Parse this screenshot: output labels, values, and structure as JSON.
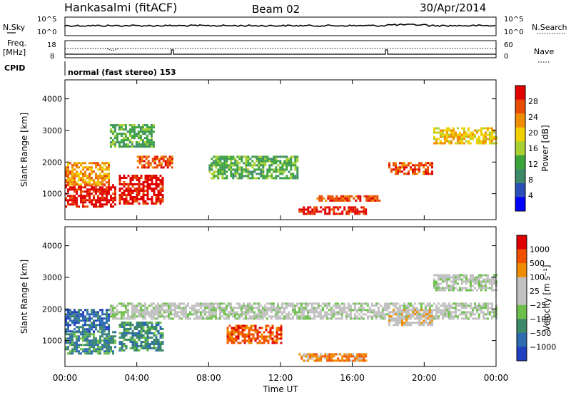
{
  "header": {
    "station": "Hankasalmi (fitACF)",
    "beam": "Beam 02",
    "date": "30/Apr/2014"
  },
  "strip_panels": {
    "nsky": {
      "left_label": "N.Sky",
      "right_label": "N.Search",
      "left_ticks": [
        "10^5",
        "10^0"
      ],
      "right_ticks": [
        "10^5",
        "10^0"
      ]
    },
    "freq": {
      "left_label_line1": "Freq.",
      "left_label_line2": "[MHz]",
      "right_label": "Nave",
      "left_ticks": [
        "18",
        "8"
      ],
      "right_ticks": [
        "60",
        "0"
      ]
    },
    "cpid": {
      "label": "CPID",
      "program": "normal (fast stereo) 153"
    }
  },
  "colors": {
    "power_scale": [
      "#0000ff",
      "#2a4fb8",
      "#3d8a6a",
      "#3aa43a",
      "#a8d030",
      "#f0d000",
      "#f08c00",
      "#e84c00",
      "#e00000"
    ],
    "velocity_scale": [
      "#2040c0",
      "#2f6bb0",
      "#3d8a6a",
      "#6cc04a",
      "#c0c0c0",
      "#c0c0c0",
      "#f08c00",
      "#f05000",
      "#e00000"
    ]
  },
  "chart_data": [
    {
      "type": "heatmap",
      "name": "power",
      "xlabel": "Time UT",
      "ylabel": "Slant Range [km]",
      "xlim": [
        0,
        24
      ],
      "ylim": [
        180,
        4600
      ],
      "x_ticks": [
        "00:00",
        "04:00",
        "08:00",
        "12:00",
        "16:00",
        "20:00",
        "00:00"
      ],
      "y_ticks": [
        1000,
        2000,
        3000,
        4000
      ],
      "colorbar": {
        "label": "Power [dB]",
        "ticks": [
          "4",
          "8",
          "12",
          "16",
          "20",
          "24",
          "28"
        ]
      },
      "echo_regions": [
        {
          "t0": 0.0,
          "t1": 2.8,
          "r0": 600,
          "r1": 1300,
          "level": 8
        },
        {
          "t0": 0.0,
          "t1": 2.5,
          "r0": 1300,
          "r1": 2000,
          "level": 6
        },
        {
          "t0": 3.0,
          "t1": 5.5,
          "r0": 700,
          "r1": 1600,
          "level": 8
        },
        {
          "t0": 4.0,
          "t1": 6.0,
          "r0": 1800,
          "r1": 2200,
          "level": 7
        },
        {
          "t0": 13.0,
          "t1": 16.8,
          "r0": 350,
          "r1": 600,
          "level": 8
        },
        {
          "t0": 14.0,
          "t1": 17.5,
          "r0": 750,
          "r1": 950,
          "level": 7
        },
        {
          "t0": 18.0,
          "t1": 20.5,
          "r0": 1600,
          "r1": 2000,
          "level": 7
        },
        {
          "t0": 20.5,
          "t1": 24.0,
          "r0": 2600,
          "r1": 3100,
          "level": 5
        },
        {
          "t0": 8.0,
          "t1": 13.0,
          "r0": 1500,
          "r1": 2200,
          "level": 3
        },
        {
          "t0": 2.5,
          "t1": 5.0,
          "r0": 2500,
          "r1": 3200,
          "level": 3
        }
      ]
    },
    {
      "type": "heatmap",
      "name": "velocity",
      "xlabel": "Time UT",
      "ylabel": "Slant Range [km]",
      "xlim": [
        0,
        24
      ],
      "ylim": [
        180,
        4600
      ],
      "x_ticks": [
        "00:00",
        "04:00",
        "08:00",
        "12:00",
        "16:00",
        "20:00",
        "00:00"
      ],
      "y_ticks": [
        1000,
        2000,
        3000,
        4000
      ],
      "colorbar": {
        "label": "Velocity [m s⁻¹]",
        "ticks": [
          "1000",
          "500",
          "100",
          "25",
          "−25",
          "−100",
          "−500",
          "−1000"
        ]
      },
      "echo_regions": [
        {
          "t0": 0.0,
          "t1": 2.8,
          "r0": 600,
          "r1": 1300,
          "level": 2
        },
        {
          "t0": 0.0,
          "t1": 2.5,
          "r0": 1300,
          "r1": 2000,
          "level": 1
        },
        {
          "t0": 3.0,
          "t1": 5.5,
          "r0": 700,
          "r1": 1600,
          "level": 2
        },
        {
          "t0": 13.0,
          "t1": 16.8,
          "r0": 350,
          "r1": 600,
          "level": 6
        },
        {
          "t0": 9.0,
          "t1": 12.0,
          "r0": 900,
          "r1": 1500,
          "level": 7
        },
        {
          "t0": 2.5,
          "t1": 24.0,
          "r0": 1700,
          "r1": 2200,
          "level": 4
        },
        {
          "t0": 20.5,
          "t1": 24.0,
          "r0": 2600,
          "r1": 3100,
          "level": 4
        },
        {
          "t0": 18.0,
          "t1": 20.5,
          "r0": 1500,
          "r1": 2000,
          "level": 5
        }
      ]
    }
  ]
}
